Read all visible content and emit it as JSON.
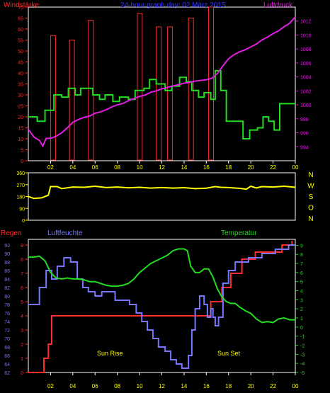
{
  "colors": {
    "background": "#000000",
    "frame": "#ffffff",
    "red": "#ff2a2a",
    "yellow": "#ffff00",
    "pressure": "#e01ee0",
    "wind": "#22dd22",
    "humidity": "#7777ff",
    "temperature": "#22dd22",
    "blue_title": "#3333ff",
    "green_label": "#22dd22"
  },
  "chart_data": [
    {
      "type": "line",
      "title": "24-hour graph day: 02 März 2015",
      "left_axis_label": "Windstärke",
      "right_axis_label": "Luftdruck",
      "x_ticks": [
        "02",
        "04",
        "06",
        "08",
        "10",
        "12",
        "14",
        "16",
        "18",
        "20",
        "22",
        "00"
      ],
      "left_ticks": [
        "0",
        "5",
        "10",
        "15",
        "20",
        "25",
        "30",
        "35",
        "40",
        "45",
        "50",
        "55",
        "60",
        "65",
        "70"
      ],
      "right_ticks": [
        "994",
        "996",
        "998",
        "1000",
        "1002",
        "1004",
        "1006",
        "1008",
        "1010",
        "1012"
      ],
      "left_range": [
        0,
        70
      ],
      "right_range": [
        992,
        1014
      ],
      "x_range": [
        0,
        24
      ],
      "series": [
        {
          "kind": "gust_bars",
          "values": [
            [
              2,
              57
            ],
            [
              3.7,
              55
            ],
            [
              5.4,
              64
            ],
            [
              9.8,
              67
            ],
            [
              11.5,
              61
            ],
            [
              12.5,
              61
            ],
            [
              14.4,
              65
            ],
            [
              16.2,
              70
            ]
          ]
        },
        {
          "kind": "wind_step",
          "points": [
            [
              0,
              20
            ],
            [
              0.8,
              18
            ],
            [
              1.5,
              23
            ],
            [
              2.3,
              30
            ],
            [
              3.0,
              29
            ],
            [
              3.6,
              33
            ],
            [
              4.2,
              30
            ],
            [
              4.7,
              33
            ],
            [
              5.8,
              30
            ],
            [
              6.4,
              28
            ],
            [
              6.9,
              30
            ],
            [
              7.6,
              27
            ],
            [
              8.2,
              29
            ],
            [
              9.0,
              28
            ],
            [
              9.6,
              32
            ],
            [
              10.4,
              33
            ],
            [
              10.9,
              37
            ],
            [
              11.5,
              35
            ],
            [
              12.3,
              32
            ],
            [
              12.9,
              34
            ],
            [
              13.6,
              38
            ],
            [
              14.2,
              36
            ],
            [
              14.7,
              32
            ],
            [
              15.3,
              29
            ],
            [
              15.8,
              31
            ],
            [
              16.4,
              28
            ],
            [
              16.8,
              41
            ],
            [
              17.3,
              32
            ],
            [
              17.8,
              18
            ],
            [
              19.3,
              10
            ],
            [
              19.9,
              14
            ],
            [
              20.6,
              15
            ],
            [
              21.1,
              20
            ],
            [
              21.6,
              18
            ],
            [
              22.1,
              14
            ],
            [
              22.6,
              26
            ],
            [
              24,
              26
            ]
          ]
        },
        {
          "kind": "pressure_line",
          "points": [
            [
              0,
              996.5
            ],
            [
              0.5,
              995.4
            ],
            [
              1.0,
              994.9
            ],
            [
              1.3,
              994.1
            ],
            [
              1.6,
              995.2
            ],
            [
              2.0,
              995.2
            ],
            [
              2.5,
              995.5
            ],
            [
              3.0,
              996.0
            ],
            [
              3.5,
              996.7
            ],
            [
              4.0,
              997.5
            ],
            [
              4.5,
              997.9
            ],
            [
              5.0,
              998.2
            ],
            [
              5.5,
              998.4
            ],
            [
              6.0,
              998.8
            ],
            [
              6.5,
              999.0
            ],
            [
              7.0,
              999.3
            ],
            [
              7.5,
              999.7
            ],
            [
              8.0,
              1000.0
            ],
            [
              8.5,
              1000.2
            ],
            [
              9.0,
              1000.6
            ],
            [
              9.5,
              1000.9
            ],
            [
              10.0,
              1001.2
            ],
            [
              10.5,
              1001.4
            ],
            [
              11.0,
              1001.8
            ],
            [
              11.5,
              1002.0
            ],
            [
              12.0,
              1002.3
            ],
            [
              12.5,
              1002.5
            ],
            [
              13.0,
              1002.7
            ],
            [
              13.5,
              1002.9
            ],
            [
              14.0,
              1003.1
            ],
            [
              14.5,
              1003.2
            ],
            [
              15.0,
              1003.4
            ],
            [
              15.5,
              1003.5
            ],
            [
              16.0,
              1003.6
            ],
            [
              16.5,
              1003.8
            ],
            [
              17.0,
              1004.5
            ],
            [
              17.5,
              1005.6
            ],
            [
              18.0,
              1006.6
            ],
            [
              18.5,
              1007.2
            ],
            [
              19.0,
              1007.6
            ],
            [
              19.5,
              1007.9
            ],
            [
              20.0,
              1008.3
            ],
            [
              20.5,
              1008.7
            ],
            [
              21.0,
              1009.3
            ],
            [
              21.5,
              1009.7
            ],
            [
              22.0,
              1010.2
            ],
            [
              22.5,
              1010.6
            ],
            [
              23.0,
              1011.2
            ],
            [
              23.5,
              1011.7
            ],
            [
              24.0,
              1012.6
            ]
          ]
        }
      ]
    },
    {
      "type": "line",
      "title": "Windrichtung",
      "right_labels": [
        "N",
        "W",
        "S",
        "O",
        "N"
      ],
      "left_ticks": [
        "0",
        "90",
        "180",
        "270",
        "360"
      ],
      "range": [
        0,
        360
      ],
      "x_range": [
        0,
        24
      ],
      "series": [
        {
          "kind": "direction_line",
          "points": [
            [
              0,
              180
            ],
            [
              0.5,
              165
            ],
            [
              1.2,
              170
            ],
            [
              1.8,
              190
            ],
            [
              2.0,
              255
            ],
            [
              2.6,
              255
            ],
            [
              3,
              240
            ],
            [
              4,
              252
            ],
            [
              5,
              250
            ],
            [
              6,
              258
            ],
            [
              7,
              248
            ],
            [
              8,
              252
            ],
            [
              9,
              246
            ],
            [
              10,
              250
            ],
            [
              11,
              244
            ],
            [
              12,
              248
            ],
            [
              13,
              244
            ],
            [
              14,
              247
            ],
            [
              15,
              240
            ],
            [
              16,
              243
            ],
            [
              16.8,
              255
            ],
            [
              17.3,
              250
            ],
            [
              18,
              248
            ],
            [
              19,
              242
            ],
            [
              19.6,
              235
            ],
            [
              20,
              258
            ],
            [
              20.5,
              245
            ],
            [
              21,
              255
            ],
            [
              22,
              252
            ],
            [
              23,
              258
            ],
            [
              24,
              250
            ]
          ]
        }
      ]
    },
    {
      "type": "line",
      "title": "",
      "left_axis_label": "Regen",
      "humidity_label": "Luftfeuchte",
      "temperature_label": "Temperatur",
      "sun_rise_label": "Sun Rise",
      "sun_set_label": "Sun Set",
      "x_ticks": [
        "02",
        "04",
        "06",
        "08",
        "10",
        "12",
        "14",
        "16",
        "18",
        "20",
        "22",
        "00"
      ],
      "humidity_ticks": [
        "62",
        "64",
        "66",
        "68",
        "70",
        "72",
        "74",
        "76",
        "78",
        "80",
        "82",
        "84",
        "86",
        "88",
        "90",
        "92"
      ],
      "rain_ticks": [
        "0",
        "1",
        "2",
        "3",
        "4",
        "5",
        "6",
        "7",
        "8",
        "9"
      ],
      "temperature_ticks": [
        "-5",
        "-4",
        "-3",
        "-2",
        "-1",
        "0",
        "1",
        "2",
        "3",
        "4",
        "5",
        "6",
        "7",
        "8",
        "9"
      ],
      "humidity_range": [
        62,
        93
      ],
      "rain_range": [
        0,
        9.3
      ],
      "temperature_range": [
        -5,
        9.5
      ],
      "x_range": [
        0,
        24
      ],
      "series": [
        {
          "kind": "rain_step",
          "points": [
            [
              0,
              0
            ],
            [
              1.3,
              0
            ],
            [
              1.4,
              1
            ],
            [
              1.8,
              2
            ],
            [
              2.1,
              4
            ],
            [
              16.2,
              4
            ],
            [
              16.4,
              5
            ],
            [
              17.2,
              5
            ],
            [
              17.4,
              6
            ],
            [
              18.2,
              7
            ],
            [
              19.2,
              8
            ],
            [
              20.3,
              8
            ],
            [
              20.4,
              8.5
            ],
            [
              22.6,
              8.5
            ],
            [
              22.8,
              9
            ],
            [
              23.6,
              9
            ],
            [
              23.7,
              9.3
            ]
          ]
        },
        {
          "kind": "humidity_line",
          "points": [
            [
              0,
              78
            ],
            [
              0.7,
              78
            ],
            [
              1.0,
              82
            ],
            [
              1.6,
              86
            ],
            [
              2.1,
              84
            ],
            [
              2.6,
              87
            ],
            [
              3.2,
              89
            ],
            [
              3.8,
              88
            ],
            [
              4.4,
              84
            ],
            [
              4.9,
              82
            ],
            [
              5.4,
              81
            ],
            [
              6.0,
              80
            ],
            [
              6.6,
              81
            ],
            [
              7.3,
              81
            ],
            [
              7.8,
              79
            ],
            [
              8.4,
              79
            ],
            [
              9.1,
              78
            ],
            [
              9.7,
              76
            ],
            [
              10.2,
              74
            ],
            [
              10.7,
              72
            ],
            [
              11.2,
              70
            ],
            [
              11.7,
              68
            ],
            [
              12.3,
              67
            ],
            [
              12.8,
              65
            ],
            [
              13.3,
              64
            ],
            [
              13.8,
              63
            ],
            [
              14.2,
              63
            ],
            [
              14.4,
              66
            ],
            [
              14.7,
              72
            ],
            [
              15.0,
              77
            ],
            [
              15.4,
              80
            ],
            [
              15.8,
              78
            ],
            [
              16.1,
              75
            ],
            [
              16.4,
              77
            ],
            [
              16.6,
              75
            ],
            [
              16.8,
              73
            ],
            [
              17.1,
              75
            ],
            [
              17.5,
              83
            ],
            [
              18.0,
              86
            ],
            [
              18.6,
              88
            ],
            [
              19.2,
              88
            ],
            [
              19.8,
              89
            ],
            [
              20.4,
              89
            ],
            [
              21.0,
              90
            ],
            [
              21.6,
              90
            ],
            [
              22.2,
              91
            ],
            [
              22.8,
              91
            ],
            [
              23.4,
              92
            ],
            [
              24.0,
              92
            ]
          ]
        },
        {
          "kind": "temperature_line",
          "points": [
            [
              0,
              7.7
            ],
            [
              0.5,
              7.7
            ],
            [
              1.0,
              7.8
            ],
            [
              1.5,
              7.3
            ],
            [
              2.0,
              6.0
            ],
            [
              2.5,
              5.4
            ],
            [
              3.0,
              5.3
            ],
            [
              3.5,
              5.4
            ],
            [
              4.0,
              5.3
            ],
            [
              4.5,
              5.3
            ],
            [
              5.0,
              5.2
            ],
            [
              5.5,
              5.0
            ],
            [
              6.0,
              5.0
            ],
            [
              6.5,
              4.8
            ],
            [
              7.0,
              4.6
            ],
            [
              7.5,
              4.5
            ],
            [
              8.0,
              4.5
            ],
            [
              8.5,
              4.6
            ],
            [
              9.0,
              4.8
            ],
            [
              9.5,
              5.3
            ],
            [
              10.0,
              6.0
            ],
            [
              10.5,
              6.5
            ],
            [
              11.0,
              7.0
            ],
            [
              11.5,
              7.3
            ],
            [
              12.0,
              7.6
            ],
            [
              12.5,
              7.9
            ],
            [
              13.0,
              8.4
            ],
            [
              13.5,
              8.6
            ],
            [
              14.0,
              8.6
            ],
            [
              14.3,
              8.4
            ],
            [
              14.6,
              6.7
            ],
            [
              15.0,
              6.0
            ],
            [
              15.4,
              6.0
            ],
            [
              15.8,
              6.4
            ],
            [
              16.2,
              6.4
            ],
            [
              16.6,
              5.5
            ],
            [
              17.0,
              4.2
            ],
            [
              17.4,
              3.3
            ],
            [
              17.8,
              2.8
            ],
            [
              18.2,
              2.6
            ],
            [
              18.6,
              2.6
            ],
            [
              19.0,
              2.2
            ],
            [
              19.5,
              1.8
            ],
            [
              20.0,
              1.5
            ],
            [
              20.5,
              0.9
            ],
            [
              21.0,
              0.5
            ],
            [
              21.5,
              0.6
            ],
            [
              22.0,
              0.5
            ],
            [
              22.5,
              0.9
            ],
            [
              23.0,
              1.0
            ],
            [
              23.5,
              0.8
            ],
            [
              24.0,
              0.8
            ]
          ]
        }
      ]
    }
  ]
}
